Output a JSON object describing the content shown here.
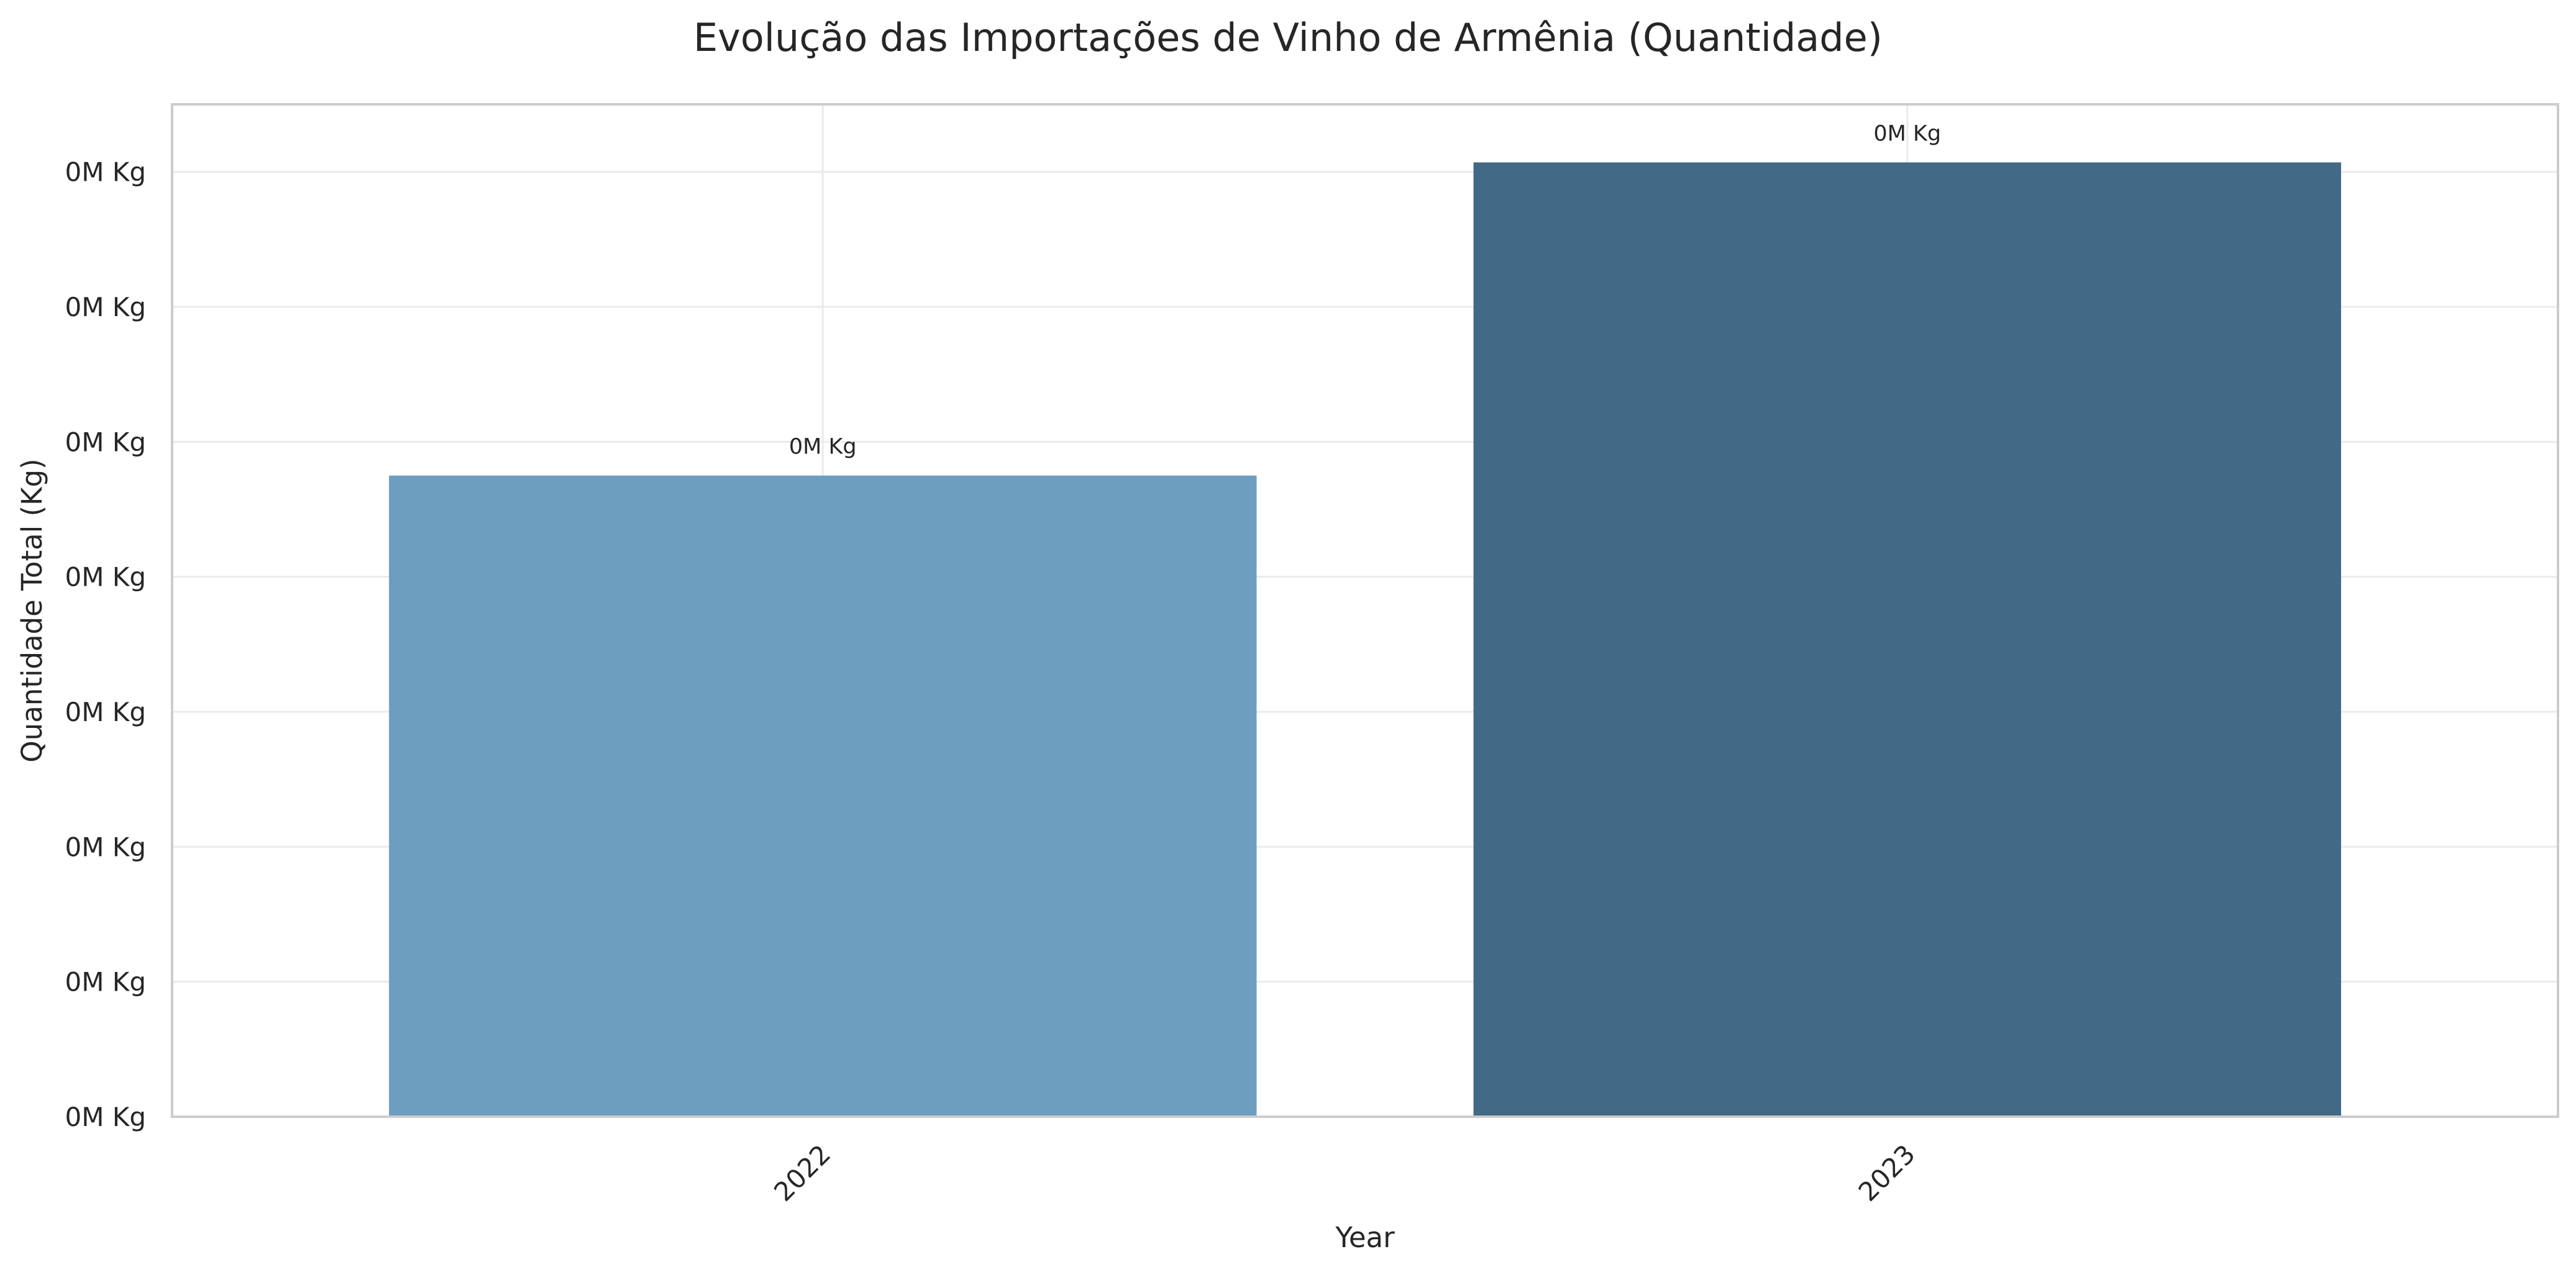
{
  "chart_data": {
    "type": "bar",
    "title": "Evolução das Importações de Vinho de Armênia (Quantidade)",
    "xlabel": "Year",
    "ylabel": "Quantidade Total (Kg)",
    "categories": [
      "2022",
      "2023"
    ],
    "values": [
      4750,
      7070
    ],
    "ylim": [
      0,
      7500
    ],
    "y_ticks": [
      0,
      1000,
      2000,
      3000,
      4000,
      5000,
      6000,
      7000
    ],
    "y_tick_labels": [
      "0M Kg",
      "0M Kg",
      "0M Kg",
      "0M Kg",
      "0M Kg",
      "0M Kg",
      "0M Kg",
      "0M Kg"
    ],
    "data_labels": [
      "0M Kg",
      "0M Kg"
    ],
    "bar_colors": [
      "#6d9ebf",
      "#426985"
    ],
    "grid": true,
    "legend": "none"
  }
}
